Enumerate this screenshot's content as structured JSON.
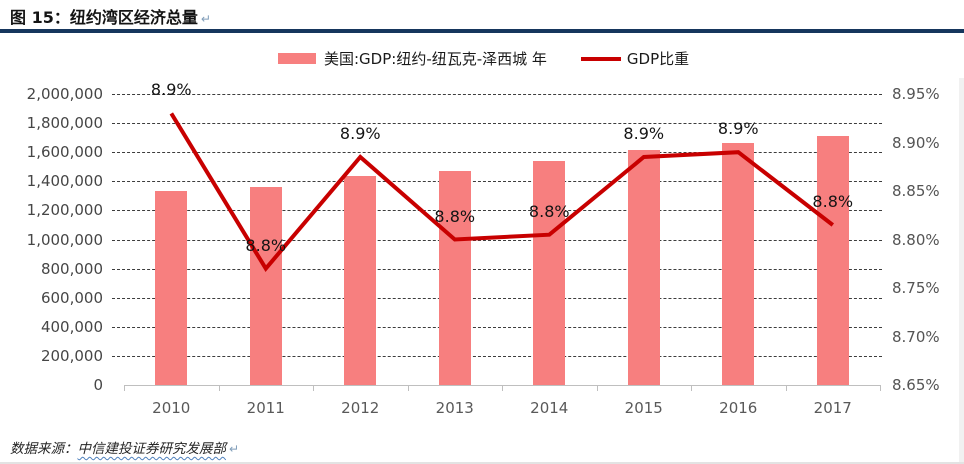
{
  "header": {
    "title": "图 15：纽约湾区经济总量",
    "pilcrow": "↵"
  },
  "legend": [
    {
      "label": "美国:GDP:纽约-纽瓦克-泽西城 年",
      "type": "bar",
      "color": "#f77f7f"
    },
    {
      "label": "GDP比重",
      "type": "line",
      "color": "#c80000"
    }
  ],
  "chart_data": {
    "type": "bar+line",
    "title": "纽约湾区经济总量",
    "categories": [
      "2010",
      "2011",
      "2012",
      "2013",
      "2014",
      "2015",
      "2016",
      "2017"
    ],
    "series": [
      {
        "name": "美国:GDP:纽约-纽瓦克-泽西城 年",
        "type": "bar",
        "axis": "left",
        "color": "#f77f7f",
        "values": [
          1334000,
          1359000,
          1434000,
          1471000,
          1539000,
          1614000,
          1662000,
          1712000
        ]
      },
      {
        "name": "GDP比重",
        "type": "line",
        "axis": "right",
        "color": "#c80000",
        "values": [
          8.93,
          8.77,
          8.885,
          8.8,
          8.805,
          8.885,
          8.89,
          8.815
        ],
        "point_labels": [
          "8.9%",
          "8.8%",
          "8.9%",
          "8.8%",
          "8.8%",
          "8.9%",
          "8.9%",
          "8.8%"
        ]
      }
    ],
    "left_axis": {
      "min": 0,
      "max": 2000000,
      "step": 200000,
      "tick_labels": [
        "2,000,000",
        "1,800,000",
        "1,600,000",
        "1,400,000",
        "1,200,000",
        "1,000,000",
        "800,000",
        "600,000",
        "400,000",
        "200,000",
        "0"
      ]
    },
    "right_axis": {
      "min": 8.65,
      "max": 8.95,
      "step": 0.05,
      "tick_labels": [
        "8.95%",
        "8.90%",
        "8.85%",
        "8.80%",
        "8.75%",
        "8.70%",
        "8.65%"
      ]
    },
    "grid": "horizontal-dashed",
    "legend_position": "top"
  },
  "footer": {
    "prefix": "数据来源：",
    "source": "中信建投证券研究发展部",
    "pilcrow": "↵"
  }
}
